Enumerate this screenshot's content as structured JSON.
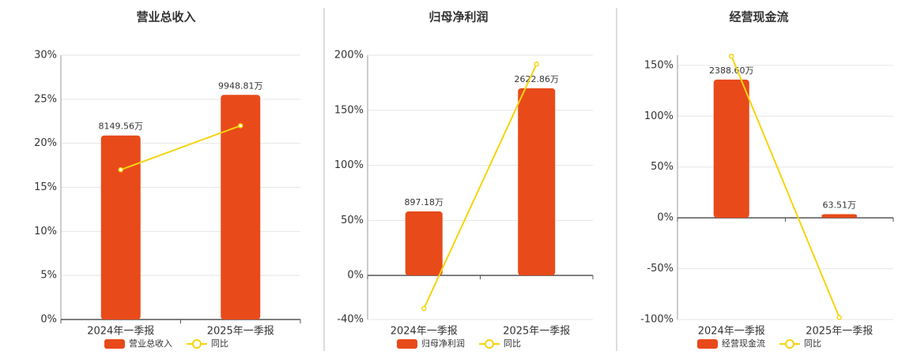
{
  "chart_data": [
    {
      "type": "bar-line",
      "title": "营业总收入",
      "categories": [
        "2024年一季报",
        "2025年一季报"
      ],
      "series": [
        {
          "name": "营业总收入",
          "type": "bar",
          "color": "#e84a1a",
          "values": [
            8149.56,
            9948.81
          ],
          "value_labels": [
            "8149.56万",
            "9948.81万"
          ]
        },
        {
          "name": "同比",
          "type": "line",
          "color": "#f5d410",
          "values": [
            17,
            22
          ]
        }
      ],
      "ylim": [
        0,
        30
      ],
      "yticks": [
        {
          "value": 0,
          "label": "0%"
        },
        {
          "value": 5,
          "label": "5%"
        },
        {
          "value": 10,
          "label": "10%"
        },
        {
          "value": 15,
          "label": "15%"
        },
        {
          "value": 20,
          "label": "20%"
        },
        {
          "value": 25,
          "label": "25%"
        },
        {
          "value": 30,
          "label": "30%"
        }
      ],
      "grid": true
    },
    {
      "type": "bar-line",
      "title": "归母净利润",
      "categories": [
        "2024年一季报",
        "2025年一季报"
      ],
      "series": [
        {
          "name": "归母净利润",
          "type": "bar",
          "color": "#e84a1a",
          "values": [
            897.18,
            2622.86
          ],
          "value_labels": [
            "897.18万",
            "2622.86万"
          ]
        },
        {
          "name": "同比",
          "type": "line",
          "color": "#f5d410",
          "values": [
            -30,
            192
          ]
        }
      ],
      "ylim": [
        -40,
        200
      ],
      "yticks": [
        {
          "value": -40,
          "label": "-40%"
        },
        {
          "value": 0,
          "label": "0%"
        },
        {
          "value": 50,
          "label": "50%"
        },
        {
          "value": 100,
          "label": "100%"
        },
        {
          "value": 150,
          "label": "150%"
        },
        {
          "value": 200,
          "label": "200%"
        }
      ],
      "grid": true
    },
    {
      "type": "bar-line",
      "title": "经营现金流",
      "categories": [
        "2024年一季报",
        "2025年一季报"
      ],
      "series": [
        {
          "name": "经营现金流",
          "type": "bar",
          "color": "#e84a1a",
          "values": [
            2388.6,
            63.51
          ],
          "value_labels": [
            "2388.60万",
            "63.51万"
          ]
        },
        {
          "name": "同比",
          "type": "line",
          "color": "#f5d410",
          "values": [
            159,
            -98
          ]
        }
      ],
      "ylim": [
        -100,
        160
      ],
      "yticks": [
        {
          "value": -100,
          "label": "-100%"
        },
        {
          "value": -50,
          "label": "-50%"
        },
        {
          "value": 0,
          "label": "0%"
        },
        {
          "value": 50,
          "label": "50%"
        },
        {
          "value": 100,
          "label": "100%"
        },
        {
          "value": 150,
          "label": "150%"
        }
      ],
      "grid": true
    }
  ]
}
